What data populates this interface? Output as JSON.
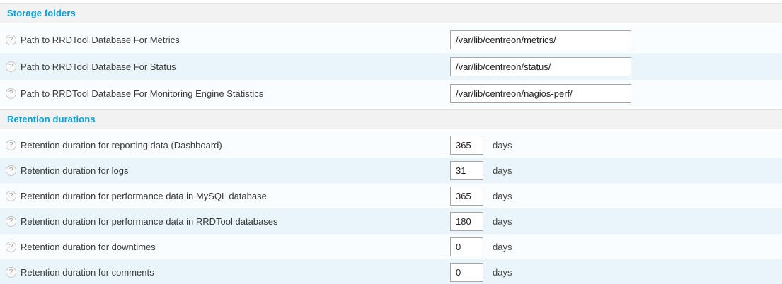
{
  "page": {
    "background": "#ffffff",
    "accent_color": "#0ba1d6",
    "row_light_color": "#fafdff",
    "row_blue_color": "#e9f5fb",
    "header_bg_color": "#f2f2f2"
  },
  "icons": {
    "help": "?"
  },
  "sections": [
    {
      "title": "Storage folders",
      "rows": [
        {
          "label": "Path to RRDTool Database For Metrics",
          "value": "/var/lib/centreon/metrics/"
        },
        {
          "label": "Path to RRDTool Database For Status",
          "value": "/var/lib/centreon/status/"
        },
        {
          "label": "Path to RRDTool Database For Monitoring Engine Statistics",
          "value": "/var/lib/centreon/nagios-perf/"
        }
      ]
    },
    {
      "title": "Retention durations",
      "rows": [
        {
          "label": "Retention duration for reporting data (Dashboard)",
          "value": "365",
          "unit": "days"
        },
        {
          "label": "Retention duration for logs",
          "value": "31",
          "unit": "days"
        },
        {
          "label": "Retention duration for performance data in MySQL database",
          "value": "365",
          "unit": "days"
        },
        {
          "label": "Retention duration for performance data in RRDTool databases",
          "value": "180",
          "unit": "days"
        },
        {
          "label": "Retention duration for downtimes",
          "value": "0",
          "unit": "days"
        },
        {
          "label": "Retention duration for comments",
          "value": "0",
          "unit": "days"
        }
      ]
    }
  ]
}
